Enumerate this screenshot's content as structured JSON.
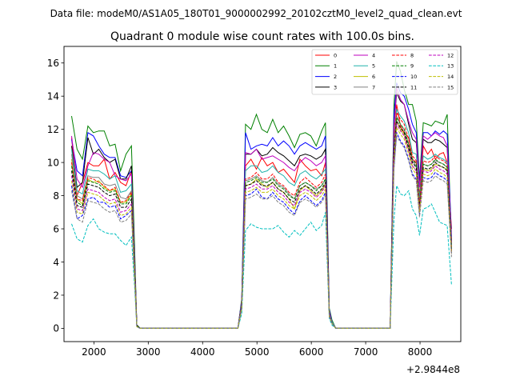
{
  "chart_data": {
    "type": "line",
    "suptitle": "Data file: modeM0/AS1A05_180T01_9000002992_20102cztM0_level2_quad_clean.evt",
    "title": "Quadrant 0 module wise count rates with 100.0s bins.",
    "xlabel": "",
    "ylabel": "",
    "x_offset_label": "+2.9844e8",
    "xlim": [
      1450,
      8750
    ],
    "ylim": [
      -0.8,
      17
    ],
    "x_ticks": [
      2000,
      3000,
      4000,
      5000,
      6000,
      7000,
      8000
    ],
    "x_tick_labels": [
      "2000",
      "3000",
      "4000",
      "5000",
      "6000",
      "7000",
      "8000"
    ],
    "y_ticks": [
      0,
      2,
      4,
      6,
      8,
      10,
      12,
      14,
      16
    ],
    "y_tick_labels": [
      "0",
      "2",
      "4",
      "6",
      "8",
      "10",
      "12",
      "14",
      "16"
    ],
    "legend_location": "upper right",
    "segments": [
      {
        "x": [
          1590,
          1690,
          1790,
          1890,
          1990,
          2090,
          2190,
          2290,
          2390,
          2490,
          2590,
          2690,
          2750,
          2790,
          2850
        ]
      },
      {
        "x": [
          2850,
          2950,
          3050,
          3150,
          3250,
          3350,
          3450,
          3550,
          3650,
          3750,
          3850,
          3950,
          4050,
          4150,
          4250,
          4350,
          4450,
          4550,
          4650
        ]
      },
      {
        "x": [
          4650,
          4720,
          4790,
          4890,
          4990,
          5090,
          5190,
          5290,
          5390,
          5490,
          5590,
          5690,
          5790,
          5890,
          5990,
          6090,
          6190,
          6260,
          6330,
          6380
        ]
      },
      {
        "x": [
          6380,
          6450,
          6550,
          6650,
          6750,
          6850,
          6950,
          7050,
          7150,
          7250,
          7350,
          7450
        ]
      },
      {
        "x": [
          7450,
          7520,
          7570,
          7640,
          7710,
          7790,
          7860,
          7930,
          7990,
          8060,
          8140,
          8210,
          8280,
          8360,
          8430,
          8500,
          8580
        ]
      }
    ],
    "series": [
      {
        "name": "0",
        "color": "#ff0000",
        "dash": "solid",
        "seg0": [
          11.5,
          8.0,
          8.8,
          10.0,
          9.8,
          9.8,
          10.2,
          9.0,
          9.4,
          8.8,
          8.6,
          9.5,
          4.0,
          0.2,
          0.0
        ],
        "seg2": [
          0.0,
          1.6,
          9.8,
          10.2,
          9.6,
          10.3,
          9.8,
          10.0,
          9.4,
          9.6,
          9.2,
          8.8,
          10.2,
          9.8,
          9.5,
          9.6,
          9.2,
          10.0,
          0.9,
          0.4
        ],
        "seg4": [
          0.0,
          11.2,
          13.5,
          12.2,
          11.8,
          11.5,
          10.2,
          10.0,
          8.0,
          11.0,
          10.5,
          10.8,
          10.2,
          10.5,
          10.6,
          10.0,
          6.0
        ]
      },
      {
        "name": "1",
        "color": "#008000",
        "dash": "solid",
        "seg0": [
          12.8,
          10.8,
          10.2,
          12.2,
          11.8,
          11.9,
          11.9,
          11.0,
          11.1,
          9.5,
          10.5,
          11.0,
          4.8,
          0.2,
          0.0
        ],
        "seg2": [
          0.0,
          1.8,
          12.3,
          12.0,
          12.9,
          12.0,
          11.8,
          12.6,
          11.8,
          12.2,
          11.6,
          10.9,
          11.7,
          11.8,
          11.6,
          11.0,
          11.9,
          12.4,
          1.2,
          0.5
        ],
        "seg4": [
          0.0,
          13.4,
          16.1,
          15.5,
          14.4,
          13.5,
          13.5,
          12.5,
          9.0,
          12.4,
          12.3,
          12.2,
          12.5,
          12.4,
          12.3,
          12.9,
          5.0
        ]
      },
      {
        "name": "2",
        "color": "#0000ff",
        "dash": "solid",
        "seg0": [
          11.4,
          9.5,
          9.2,
          11.8,
          11.6,
          11.0,
          10.5,
          10.3,
          10.3,
          9.2,
          9.1,
          9.5,
          4.2,
          0.2,
          0.0
        ],
        "seg2": [
          0.0,
          1.7,
          11.8,
          10.8,
          11.0,
          11.1,
          11.0,
          11.5,
          11.0,
          11.3,
          11.0,
          10.5,
          11.0,
          11.2,
          11.0,
          10.8,
          11.0,
          11.6,
          1.1,
          0.4
        ],
        "seg4": [
          0.0,
          12.8,
          14.8,
          14.2,
          14.0,
          13.2,
          12.3,
          11.8,
          8.8,
          11.8,
          11.8,
          11.6,
          11.9,
          11.7,
          11.9,
          11.7,
          5.5
        ]
      },
      {
        "name": "3",
        "color": "#000000",
        "dash": "solid",
        "seg0": [
          11.0,
          8.5,
          8.8,
          11.5,
          10.5,
          10.8,
          10.3,
          10.0,
          10.2,
          9.0,
          9.0,
          9.8,
          4.1,
          0.2,
          0.0
        ],
        "seg2": [
          0.0,
          1.6,
          10.5,
          10.5,
          10.8,
          10.4,
          10.5,
          10.9,
          10.6,
          10.4,
          10.1,
          9.8,
          10.4,
          10.5,
          10.4,
          10.2,
          10.4,
          10.8,
          1.0,
          0.4
        ],
        "seg4": [
          0.0,
          12.2,
          14.2,
          13.7,
          13.5,
          12.3,
          11.4,
          11.2,
          8.6,
          11.4,
          11.2,
          11.2,
          11.4,
          11.3,
          11.1,
          10.9,
          5.3
        ]
      },
      {
        "name": "4",
        "color": "#bf00bf",
        "dash": "solid",
        "seg0": [
          11.6,
          9.0,
          8.5,
          9.8,
          10.6,
          10.5,
          10.2,
          10.0,
          9.2,
          9.0,
          8.9,
          9.3,
          4.0,
          0.2,
          0.0
        ],
        "seg2": [
          0.0,
          1.6,
          10.6,
          10.5,
          10.8,
          10.2,
          10.3,
          10.4,
          10.2,
          10.0,
          9.7,
          9.5,
          10.0,
          10.3,
          10.1,
          9.8,
          10.0,
          10.4,
          1.0,
          0.4
        ],
        "seg4": [
          0.0,
          12.0,
          14.5,
          13.8,
          13.5,
          12.5,
          11.8,
          11.4,
          8.5,
          11.6,
          11.4,
          11.6,
          11.8,
          11.6,
          11.5,
          11.0,
          5.2
        ]
      },
      {
        "name": "5",
        "color": "#20b2aa",
        "dash": "solid",
        "seg0": [
          10.8,
          8.3,
          8.1,
          9.6,
          9.5,
          9.5,
          9.3,
          9.0,
          9.2,
          8.2,
          8.3,
          8.7,
          3.8,
          0.2,
          0.0
        ],
        "seg2": [
          0.0,
          1.5,
          9.5,
          9.8,
          9.8,
          9.4,
          9.5,
          9.8,
          9.4,
          9.2,
          8.8,
          8.6,
          9.3,
          9.5,
          9.2,
          9.0,
          9.3,
          9.6,
          0.9,
          0.4
        ],
        "seg4": [
          0.0,
          11.0,
          13.2,
          12.8,
          12.5,
          11.8,
          10.6,
          10.5,
          7.8,
          10.4,
          10.2,
          10.3,
          10.5,
          10.3,
          10.2,
          10.0,
          5.0
        ]
      },
      {
        "name": "6",
        "color": "#bfbf00",
        "dash": "solid",
        "seg0": [
          10.2,
          7.8,
          7.5,
          9.0,
          8.8,
          8.9,
          8.5,
          8.3,
          8.4,
          7.6,
          7.6,
          8.1,
          3.5,
          0.2,
          0.0
        ],
        "seg2": [
          0.0,
          1.4,
          8.6,
          8.7,
          9.0,
          8.7,
          8.5,
          8.8,
          8.4,
          8.2,
          7.8,
          7.2,
          8.3,
          8.6,
          8.3,
          8.0,
          8.3,
          8.7,
          0.8,
          0.3
        ],
        "seg4": [
          0.0,
          10.2,
          12.5,
          12.0,
          11.7,
          10.8,
          9.8,
          9.5,
          7.0,
          9.6,
          9.5,
          9.6,
          9.9,
          9.8,
          9.7,
          9.6,
          4.6
        ]
      },
      {
        "name": "7",
        "color": "#808080",
        "dash": "solid",
        "seg0": [
          10.5,
          8.0,
          7.8,
          9.2,
          9.1,
          9.1,
          8.7,
          8.6,
          8.7,
          7.9,
          7.8,
          8.3,
          3.6,
          0.2,
          0.0
        ],
        "seg2": [
          0.0,
          1.4,
          8.9,
          9.0,
          9.2,
          8.9,
          8.8,
          9.1,
          8.7,
          8.5,
          8.1,
          7.8,
          8.6,
          8.8,
          8.6,
          8.4,
          8.6,
          9.0,
          0.8,
          0.3
        ],
        "seg4": [
          0.0,
          10.5,
          12.8,
          12.3,
          12.0,
          11.1,
          10.1,
          9.8,
          7.3,
          9.9,
          9.8,
          9.9,
          10.1,
          10.0,
          9.9,
          9.7,
          4.8
        ]
      },
      {
        "name": "8",
        "color": "#ff0000",
        "dash": "dashed",
        "seg0": [
          10.0,
          7.8,
          7.7,
          9.1,
          9.0,
          8.8,
          8.6,
          8.3,
          8.5,
          7.6,
          7.7,
          8.2,
          3.5,
          0.2,
          0.0
        ],
        "seg2": [
          0.0,
          1.4,
          9.0,
          9.1,
          9.4,
          9.0,
          9.0,
          9.3,
          8.8,
          8.6,
          8.2,
          8.0,
          8.8,
          9.1,
          8.8,
          8.5,
          8.8,
          9.3,
          0.8,
          0.3
        ],
        "seg4": [
          0.0,
          10.8,
          13.0,
          12.6,
          12.3,
          11.4,
          10.4,
          10.1,
          7.5,
          10.1,
          10.0,
          10.1,
          10.4,
          10.2,
          10.1,
          9.9,
          4.9
        ]
      },
      {
        "name": "9",
        "color": "#008000",
        "dash": "dashed",
        "seg0": [
          9.8,
          7.6,
          7.4,
          8.9,
          8.8,
          8.7,
          8.4,
          8.2,
          8.3,
          7.5,
          7.5,
          8.0,
          3.4,
          0.2,
          0.0
        ],
        "seg2": [
          0.0,
          1.4,
          8.8,
          8.9,
          9.1,
          8.8,
          8.8,
          9.0,
          8.6,
          8.4,
          8.0,
          7.8,
          8.6,
          8.8,
          8.6,
          8.3,
          8.6,
          9.0,
          0.8,
          0.3
        ],
        "seg4": [
          0.0,
          10.6,
          12.7,
          12.3,
          12.0,
          11.1,
          10.2,
          9.9,
          7.3,
          9.9,
          9.8,
          9.9,
          10.2,
          10.0,
          9.9,
          9.7,
          4.8
        ]
      },
      {
        "name": "10",
        "color": "#0000ff",
        "dash": "dashed",
        "seg0": [
          8.6,
          6.6,
          6.8,
          7.8,
          7.9,
          7.6,
          7.6,
          7.3,
          7.4,
          6.6,
          6.8,
          7.1,
          3.0,
          0.1,
          0.0
        ],
        "seg2": [
          0.0,
          1.2,
          8.0,
          8.1,
          8.4,
          7.9,
          7.8,
          8.2,
          7.8,
          7.6,
          7.2,
          6.9,
          7.7,
          8.0,
          7.7,
          7.4,
          7.7,
          8.2,
          0.7,
          0.3
        ],
        "seg4": [
          0.0,
          9.6,
          11.8,
          11.3,
          11.0,
          10.2,
          9.3,
          9.0,
          6.8,
          9.1,
          9.0,
          9.1,
          9.4,
          9.2,
          9.1,
          8.9,
          4.5
        ]
      },
      {
        "name": "11",
        "color": "#000000",
        "dash": "dashed",
        "seg0": [
          9.5,
          7.4,
          7.3,
          8.7,
          8.6,
          8.5,
          8.2,
          8.0,
          8.1,
          7.3,
          7.3,
          7.8,
          3.3,
          0.2,
          0.0
        ],
        "seg2": [
          0.0,
          1.3,
          8.6,
          8.7,
          8.9,
          8.6,
          8.6,
          8.8,
          8.4,
          8.2,
          7.8,
          7.6,
          8.4,
          8.6,
          8.4,
          8.1,
          8.4,
          8.8,
          0.8,
          0.3
        ],
        "seg4": [
          0.0,
          10.4,
          12.5,
          12.1,
          11.8,
          10.9,
          10.0,
          9.7,
          7.2,
          9.7,
          9.6,
          9.7,
          10.0,
          9.8,
          9.7,
          9.5,
          4.7
        ]
      },
      {
        "name": "12",
        "color": "#bf00bf",
        "dash": "dashed",
        "seg0": [
          9.2,
          7.2,
          7.1,
          8.4,
          8.3,
          8.2,
          7.9,
          7.7,
          7.8,
          7.0,
          7.1,
          7.5,
          3.2,
          0.1,
          0.0
        ],
        "seg2": [
          0.0,
          1.3,
          8.4,
          8.5,
          8.7,
          8.4,
          8.4,
          8.6,
          8.2,
          8.0,
          7.6,
          7.4,
          8.2,
          8.4,
          8.2,
          7.9,
          8.2,
          8.6,
          0.8,
          0.3
        ],
        "seg4": [
          0.0,
          10.2,
          12.3,
          11.9,
          11.6,
          10.7,
          9.8,
          9.5,
          7.1,
          9.5,
          9.4,
          9.5,
          9.8,
          9.6,
          9.5,
          9.3,
          4.6
        ]
      },
      {
        "name": "13",
        "color": "#00bfbf",
        "dash": "dashed",
        "seg0": [
          6.3,
          5.4,
          5.2,
          6.2,
          6.6,
          6.0,
          5.8,
          5.7,
          5.7,
          5.3,
          5.0,
          5.5,
          2.5,
          0.1,
          0.0
        ],
        "seg2": [
          0.0,
          0.9,
          5.9,
          6.3,
          6.1,
          6.0,
          6.0,
          6.0,
          6.2,
          5.8,
          5.5,
          5.9,
          5.6,
          6.0,
          6.4,
          5.9,
          6.2,
          7.0,
          0.6,
          0.2
        ],
        "seg4": [
          0.0,
          6.5,
          8.6,
          8.1,
          8.0,
          8.3,
          7.2,
          6.8,
          5.6,
          7.2,
          7.3,
          7.5,
          7.0,
          6.4,
          6.3,
          6.2,
          2.6
        ]
      },
      {
        "name": "14",
        "color": "#bfbf00",
        "dash": "dashed",
        "seg0": [
          8.9,
          7.0,
          6.9,
          8.2,
          8.1,
          8.0,
          7.7,
          7.5,
          7.6,
          6.8,
          6.9,
          7.3,
          3.1,
          0.1,
          0.0
        ],
        "seg2": [
          0.0,
          1.2,
          8.2,
          8.3,
          8.5,
          8.2,
          8.2,
          8.4,
          8.0,
          7.8,
          7.4,
          7.2,
          8.0,
          8.2,
          8.0,
          7.7,
          8.0,
          8.4,
          0.7,
          0.3
        ],
        "seg4": [
          0.0,
          10.0,
          12.1,
          11.7,
          11.4,
          10.5,
          9.6,
          9.3,
          7.0,
          9.3,
          9.2,
          9.3,
          9.6,
          9.4,
          9.3,
          9.1,
          4.5
        ]
      },
      {
        "name": "15",
        "color": "#808080",
        "dash": "dashed",
        "seg0": [
          8.3,
          6.6,
          6.4,
          7.7,
          7.6,
          7.5,
          7.2,
          7.0,
          7.1,
          6.4,
          6.5,
          6.9,
          2.9,
          0.1,
          0.0
        ],
        "seg2": [
          0.0,
          1.2,
          7.8,
          7.9,
          8.1,
          7.8,
          7.8,
          8.0,
          7.6,
          7.4,
          7.0,
          6.8,
          7.6,
          7.8,
          7.6,
          7.3,
          7.6,
          8.0,
          0.7,
          0.3
        ],
        "seg4": [
          0.0,
          9.6,
          11.6,
          11.2,
          10.9,
          10.1,
          9.2,
          8.9,
          6.7,
          8.9,
          8.8,
          8.9,
          9.2,
          9.0,
          8.9,
          8.7,
          4.3
        ]
      }
    ]
  }
}
